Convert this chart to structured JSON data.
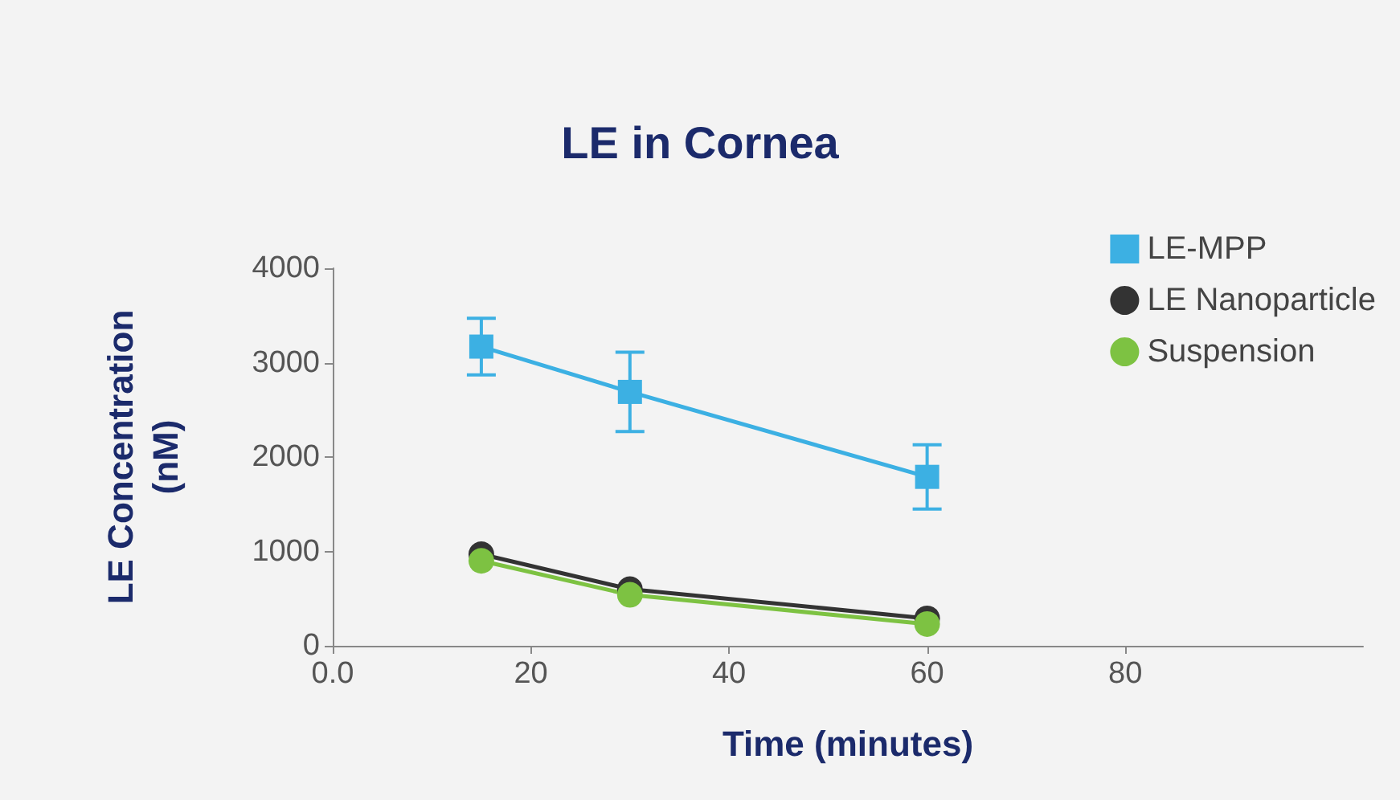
{
  "chart_data": {
    "type": "line",
    "title": "LE in Cornea",
    "xlabel": "Time (minutes)",
    "ylabel": "LE Concentration\n(nM)",
    "x": [
      15,
      30,
      60
    ],
    "series": [
      {
        "name": "LE-MPP",
        "color": "#3cb0e3",
        "marker": "square",
        "values": [
          3170,
          2690,
          1790
        ],
        "errors": [
          300,
          420,
          340
        ]
      },
      {
        "name": "LE Nanoparticle",
        "color": "#333333",
        "marker": "circle",
        "values": [
          970,
          600,
          290
        ]
      },
      {
        "name": "Suspension",
        "color": "#7dc242",
        "marker": "circle",
        "values": [
          900,
          540,
          230
        ]
      }
    ],
    "xlim": [
      0,
      104
    ],
    "xticks": [
      {
        "value": 0,
        "label": "0.0"
      },
      20,
      40,
      60,
      80
    ],
    "ylim": [
      0,
      4000
    ],
    "yticks": [
      0,
      1000,
      2000,
      3000,
      4000
    ],
    "grid": false,
    "legend": "top right",
    "line_style": "solid"
  }
}
